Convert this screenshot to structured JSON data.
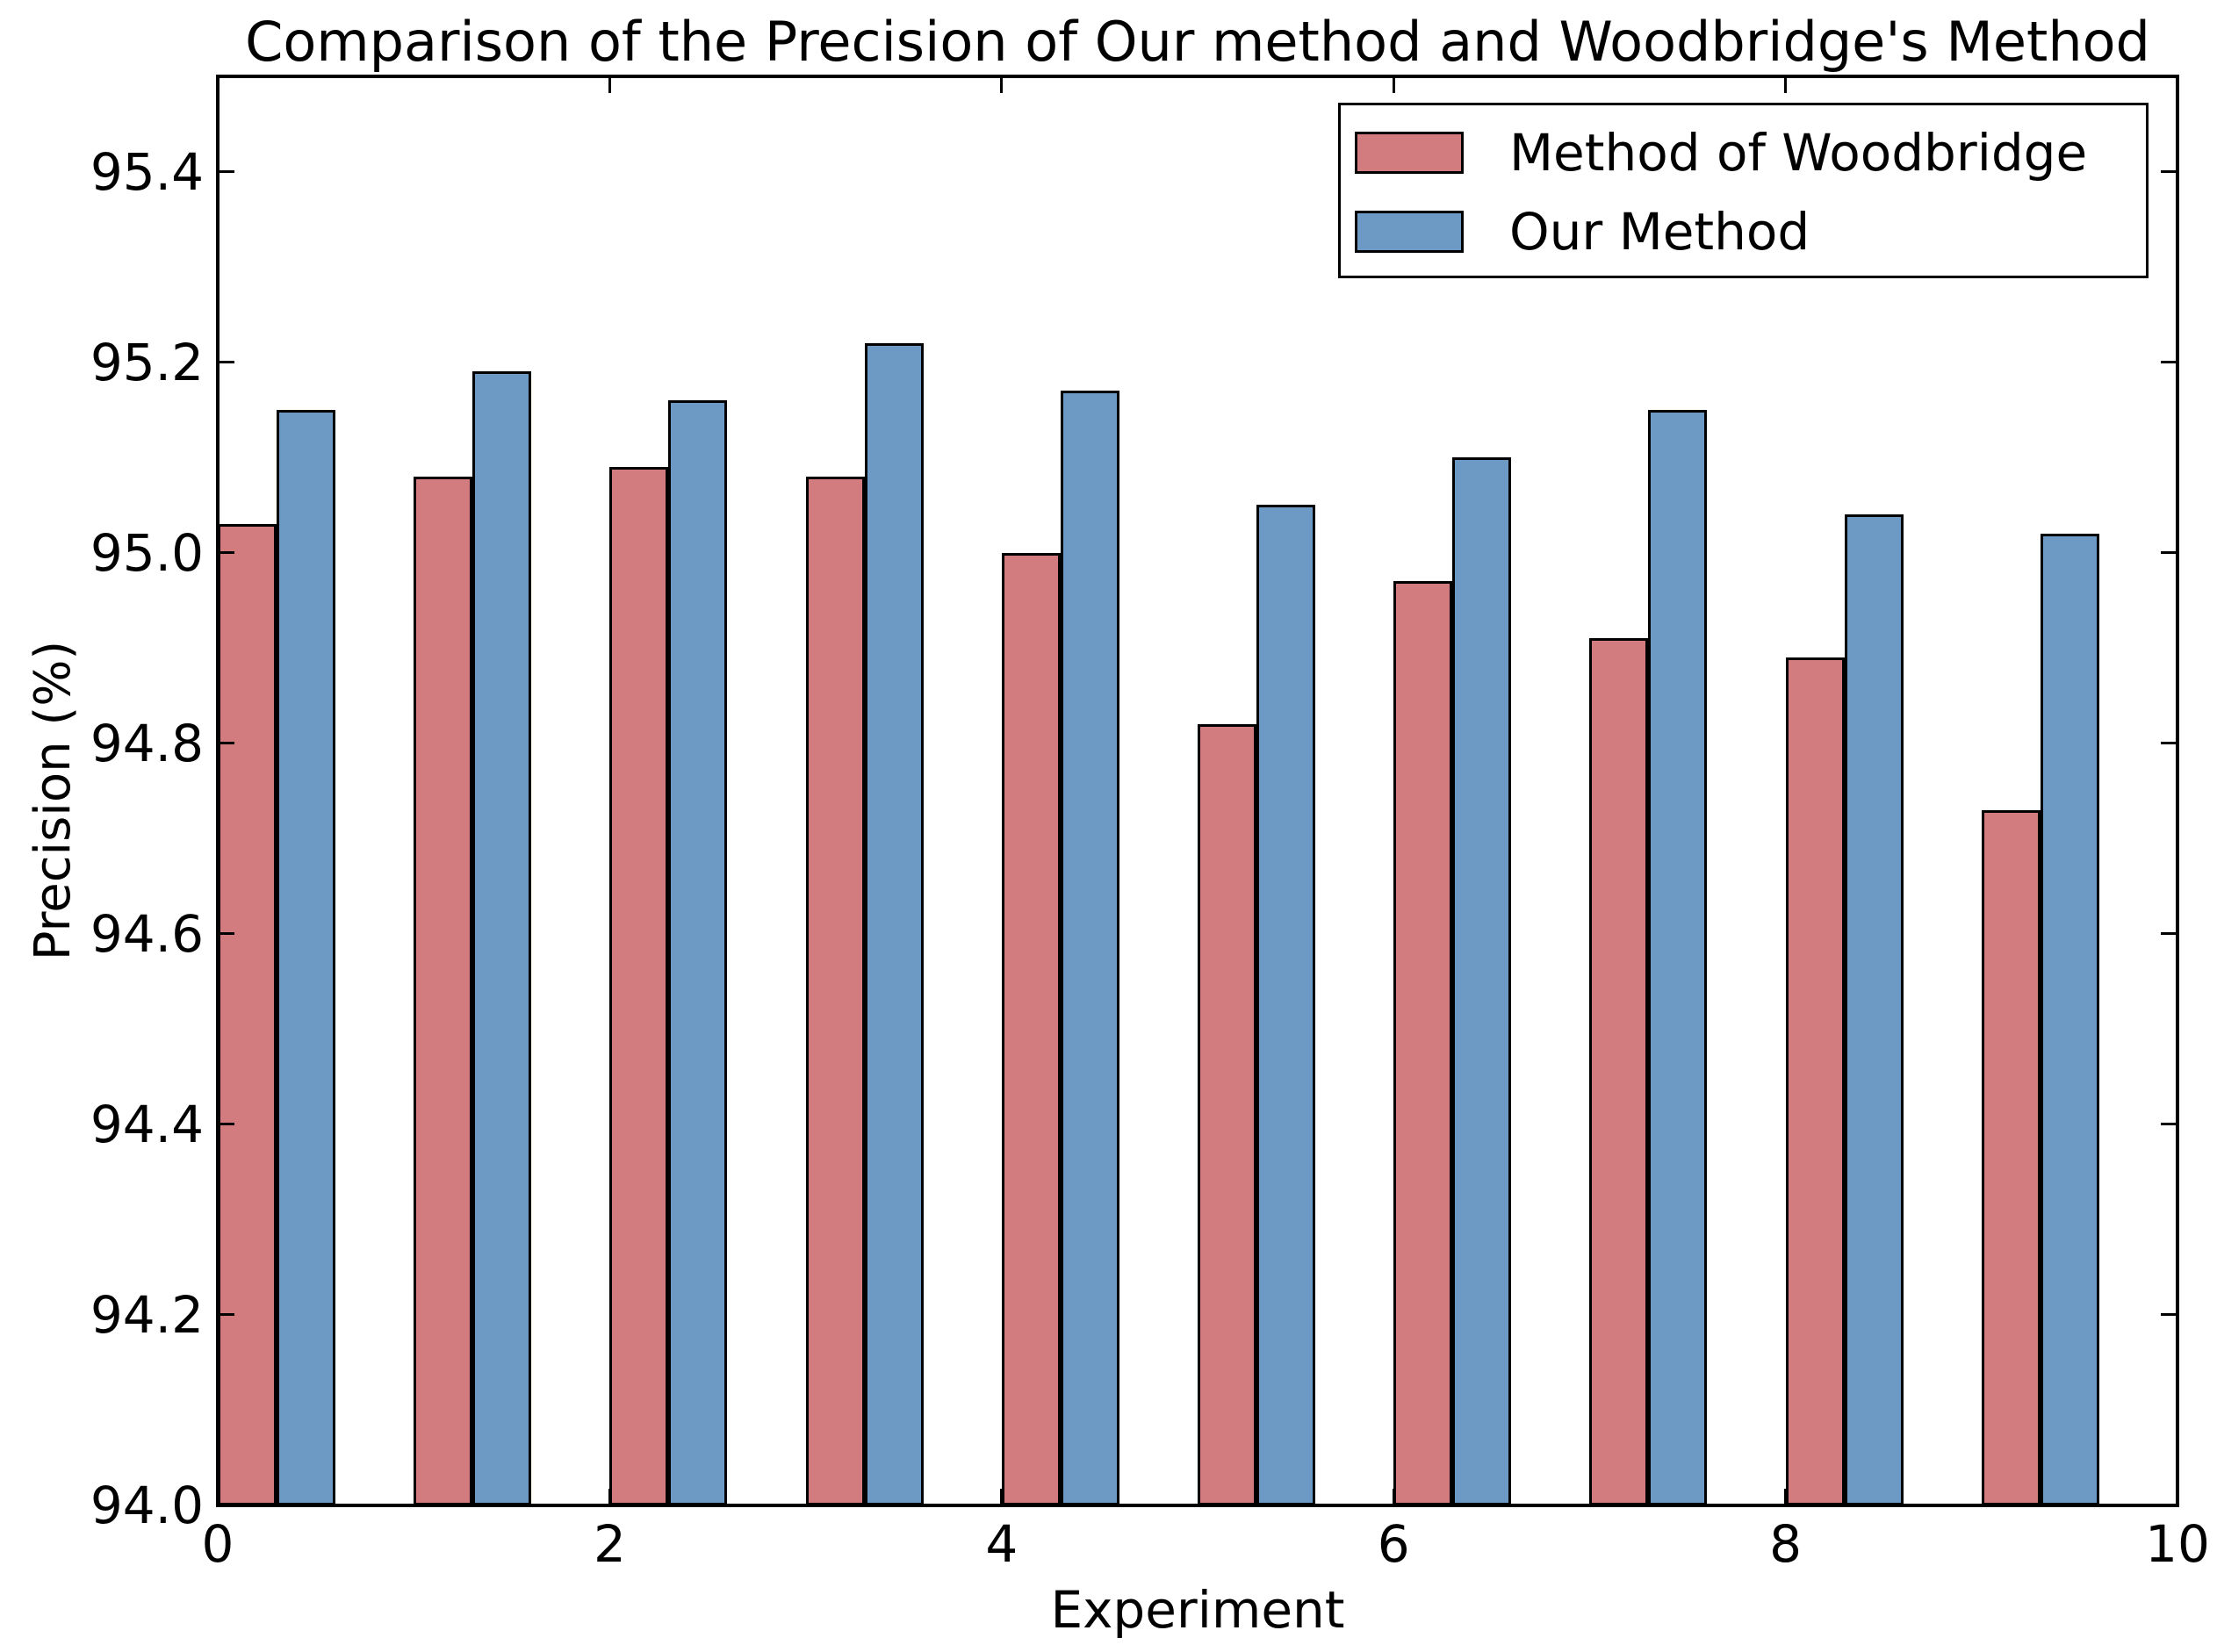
{
  "chart_data": {
    "type": "bar",
    "title": "Comparison of the Precision of Our method and Woodbridge's Method",
    "xlabel": "Experiment",
    "ylabel": "Precision (%)",
    "categories": [
      0,
      1,
      2,
      3,
      4,
      5,
      6,
      7,
      8,
      9
    ],
    "series": [
      {
        "name": "Method of Woodbridge",
        "color": "#d27c7f",
        "values": [
          95.03,
          95.08,
          95.09,
          95.08,
          95.0,
          94.82,
          94.97,
          94.91,
          94.89,
          94.73
        ]
      },
      {
        "name": "Our Method",
        "color": "#6d9ac5",
        "values": [
          95.15,
          95.19,
          95.16,
          95.22,
          95.17,
          95.05,
          95.1,
          95.15,
          95.04,
          95.02
        ]
      }
    ],
    "bar_width": 0.3,
    "bar_edge_color": "#000000",
    "xlim": [
      0,
      10
    ],
    "ylim": [
      94.0,
      95.5
    ],
    "xticks": [
      0,
      2,
      4,
      6,
      8,
      10
    ],
    "yticks": [
      94.0,
      94.2,
      94.4,
      94.6,
      94.8,
      95.0,
      95.2,
      95.4
    ],
    "grid": false,
    "background": "#ffffff",
    "legend": {
      "position": "upper right",
      "entries": [
        "Method of Woodbridge",
        "Our Method"
      ]
    }
  }
}
